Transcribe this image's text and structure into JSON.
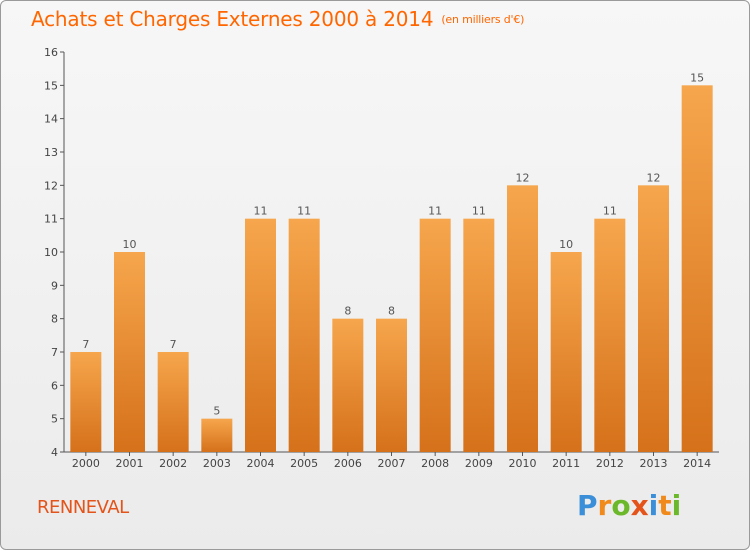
{
  "title": "Achats et Charges Externes 2000 à 2014",
  "unit_label": "(en milliers d'€)",
  "town": "RENNEVAL",
  "logo": {
    "text": "Proxiti",
    "letter_colors": [
      "#3a8fd8",
      "#f08a1c",
      "#6bb82a",
      "#e4541a",
      "#3a8fd8",
      "#f08a1c",
      "#6bb82a"
    ]
  },
  "colors": {
    "bar_top": "#f6a64d",
    "bar_bottom": "#d5711a",
    "title": "#ff6600"
  },
  "chart_data": {
    "type": "bar",
    "categories": [
      "2000",
      "2001",
      "2002",
      "2003",
      "2004",
      "2005",
      "2006",
      "2007",
      "2008",
      "2009",
      "2010",
      "2011",
      "2012",
      "2013",
      "2014"
    ],
    "values": [
      7,
      10,
      7,
      5,
      11,
      11,
      8,
      8,
      11,
      11,
      12,
      10,
      11,
      12,
      15
    ],
    "ylim": [
      4,
      16
    ],
    "yticks": [
      4,
      5,
      6,
      7,
      8,
      9,
      10,
      11,
      12,
      13,
      14,
      15,
      16
    ],
    "grid": false,
    "xlabel": "",
    "ylabel": ""
  }
}
